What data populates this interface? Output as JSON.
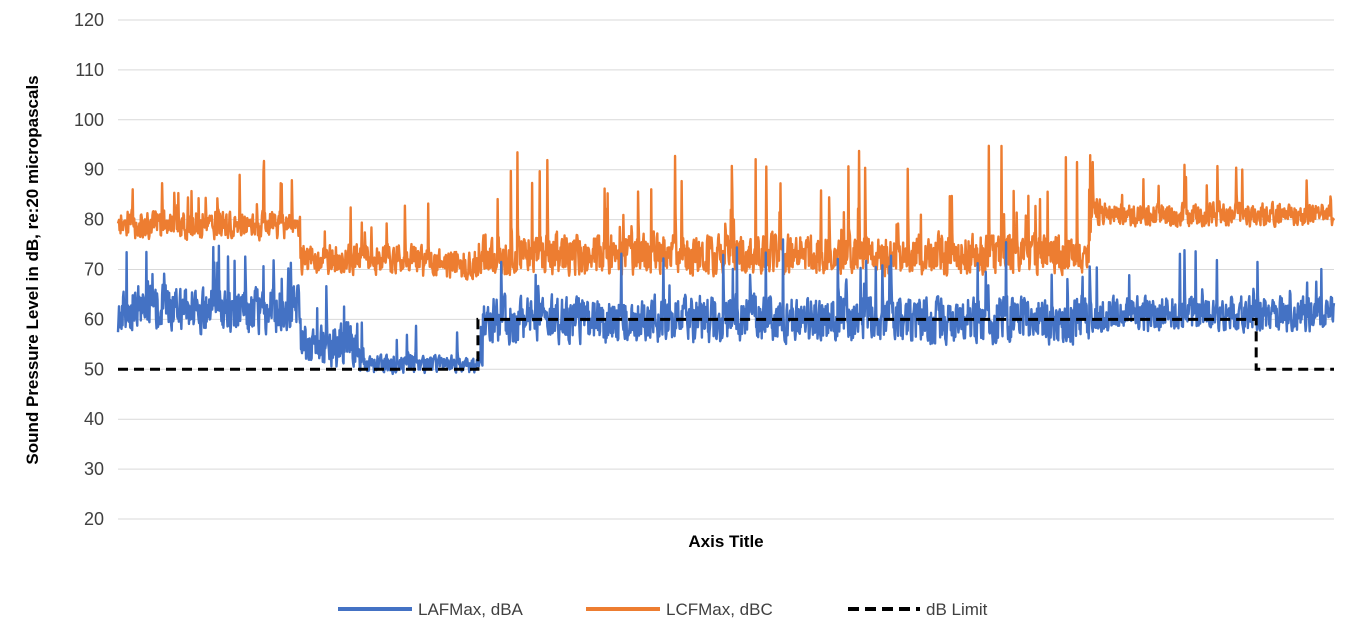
{
  "chart_data": {
    "type": "line",
    "title": "",
    "xlabel": "Axis Title",
    "ylabel": "Sound Pressure Level in dB, re:20 micropascals",
    "ylim": [
      20,
      120
    ],
    "yticks": [
      20,
      30,
      40,
      50,
      60,
      70,
      80,
      90,
      100,
      110,
      120
    ],
    "grid": true,
    "legend_position": "bottom",
    "x_ticks_shown": false,
    "n_points": 2400,
    "series": [
      {
        "name": "LAFMax, dBA",
        "color": "#4472C4",
        "segments": [
          {
            "from": 0,
            "to": 0.15,
            "baseline": 62,
            "variation": 8,
            "max_spike": 79
          },
          {
            "from": 0.15,
            "to": 0.2,
            "baseline": 55,
            "variation": 8,
            "max_spike": 72
          },
          {
            "from": 0.2,
            "to": 0.3,
            "baseline": 51,
            "variation": 3,
            "min": 48,
            "max_spike": 65
          },
          {
            "from": 0.3,
            "to": 0.8,
            "baseline": 60,
            "variation": 8,
            "max_spike": 82
          },
          {
            "from": 0.8,
            "to": 1,
            "baseline": 61,
            "variation": 6,
            "max_spike": 79
          }
        ]
      },
      {
        "name": "LCFMax, dBC",
        "color": "#ED7D31",
        "segments": [
          {
            "from": 0,
            "to": 0.15,
            "baseline": 79,
            "variation": 5,
            "max_spike": 93
          },
          {
            "from": 0.15,
            "to": 0.25,
            "baseline": 72,
            "variation": 5,
            "max_spike": 87
          },
          {
            "from": 0.25,
            "to": 0.3,
            "baseline": 71,
            "variation": 5,
            "max_spike": 87,
            "min": 60
          },
          {
            "from": 0.3,
            "to": 0.8,
            "baseline": 73,
            "variation": 7,
            "max_spike": 103
          },
          {
            "from": 0.8,
            "to": 1,
            "baseline": 81,
            "variation": 4,
            "max_spike": 95
          }
        ]
      },
      {
        "name": "dB Limit",
        "color": "#000000",
        "dashed": true,
        "steps": [
          {
            "from": 0,
            "to": 0.296,
            "value": 50
          },
          {
            "from": 0.296,
            "to": 0.936,
            "value": 60
          },
          {
            "from": 0.936,
            "to": 1,
            "value": 50
          }
        ]
      }
    ]
  }
}
